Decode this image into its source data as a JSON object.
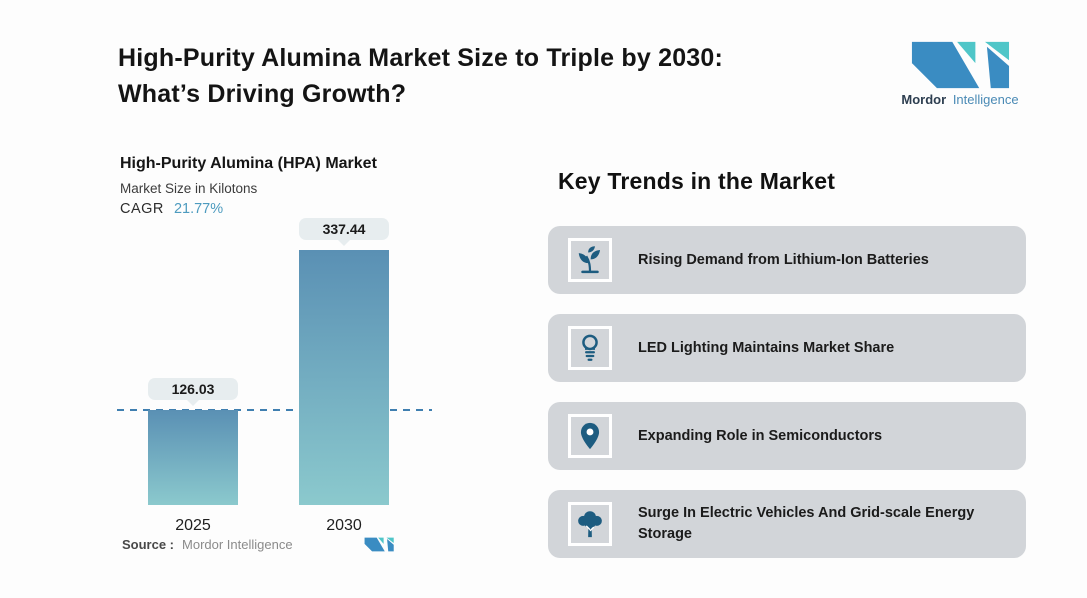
{
  "header": {
    "title_line1": "High-Purity Alumina Market Size to Triple by 2030:",
    "title_line2": "What’s Driving Growth?"
  },
  "logo": {
    "word_bold": "Mordor",
    "word_light": "Intelligence"
  },
  "chart_data": {
    "type": "bar",
    "title": "High-Purity Alumina (HPA) Market",
    "subtitle": "Market Size in Kilotons",
    "cagr_label": "CAGR",
    "cagr_value": "21.77%",
    "categories": [
      "2025",
      "2030"
    ],
    "values": [
      126.03,
      337.44
    ],
    "value_labels": [
      "126.03",
      "337.44"
    ],
    "unit": "Kilotons",
    "ylim": [
      0,
      360
    ],
    "grid": false,
    "reference_line": 126.03,
    "legend": "none",
    "source_label": "Source :",
    "source_value": "Mordor Intelligence"
  },
  "trends": {
    "heading": "Key Trends in the Market",
    "items": [
      {
        "icon": "seedling-icon",
        "label": "Rising Demand from Lithium-Ion Batteries"
      },
      {
        "icon": "lightbulb-icon",
        "label": "LED Lighting Maintains Market Share"
      },
      {
        "icon": "map-pin-icon",
        "label": "Expanding Role in Semiconductors"
      },
      {
        "icon": "tree-icon",
        "label": "Surge In Electric Vehicles And Grid-scale Energy Storage"
      }
    ]
  },
  "colors": {
    "brand_blue": "#3a8cc2",
    "brand_teal": "#4fc6c8",
    "icon_blue": "#1d5c80",
    "card_bg": "#d2d5d9",
    "bar_top": "#5a90b4",
    "bar_bottom": "#8bc9cd",
    "pill_bg": "#e7edef",
    "dash_line": "#3f7fb0",
    "cagr_value": "#4d9bbf",
    "logo_text_dark": "#2d3e50",
    "logo_text_light": "#4a8ab5"
  }
}
